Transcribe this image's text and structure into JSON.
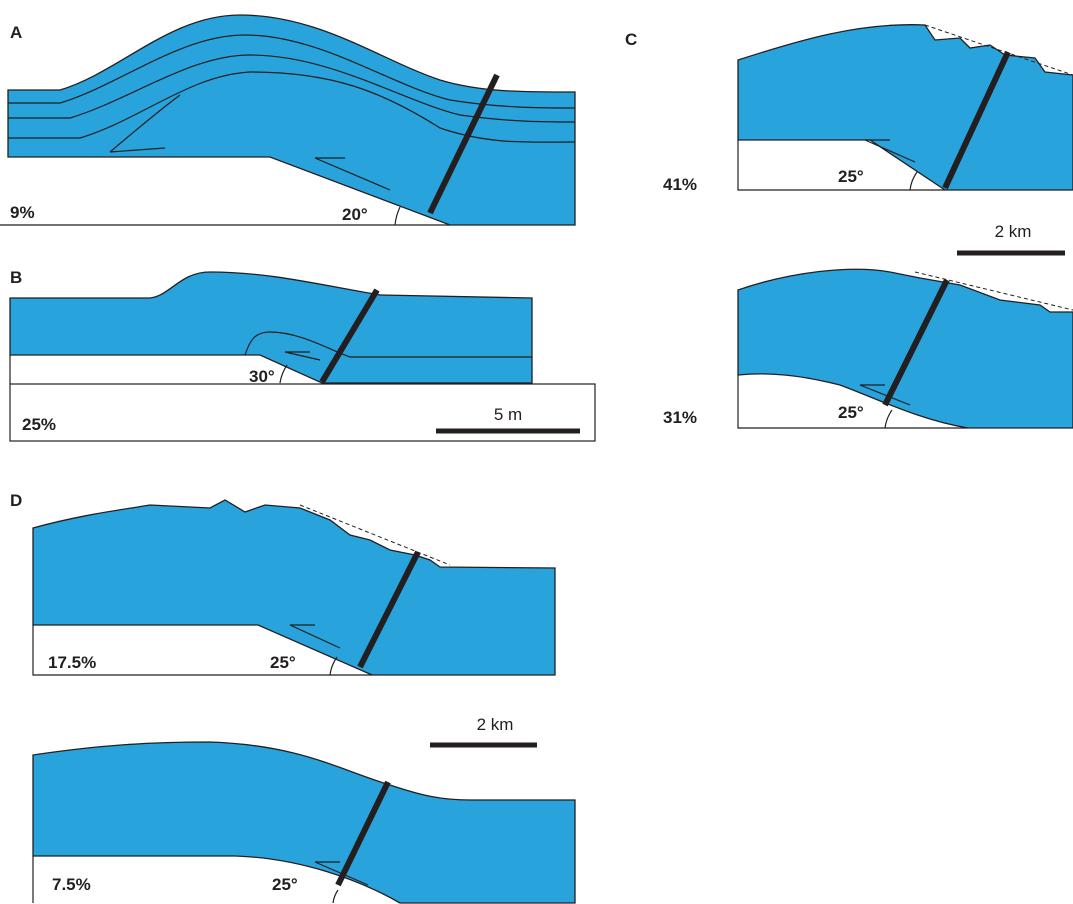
{
  "panels": [
    {
      "label": "A",
      "sections": [
        {
          "shortening": "9%",
          "angle": "20°"
        }
      ]
    },
    {
      "label": "B",
      "sections": [
        {
          "shortening": "25%",
          "angle": "30°"
        }
      ],
      "scale_bar": "5 m"
    },
    {
      "label": "C",
      "sections": [
        {
          "shortening": "41%",
          "angle": "25°"
        },
        {
          "shortening": "31%",
          "angle": "25°"
        }
      ],
      "scale_bar": "2 km"
    },
    {
      "label": "D",
      "sections": [
        {
          "shortening": "17.5%",
          "angle": "25°"
        },
        {
          "shortening": "7.5%",
          "angle": "25°"
        }
      ],
      "scale_bar": "2 km"
    }
  ]
}
